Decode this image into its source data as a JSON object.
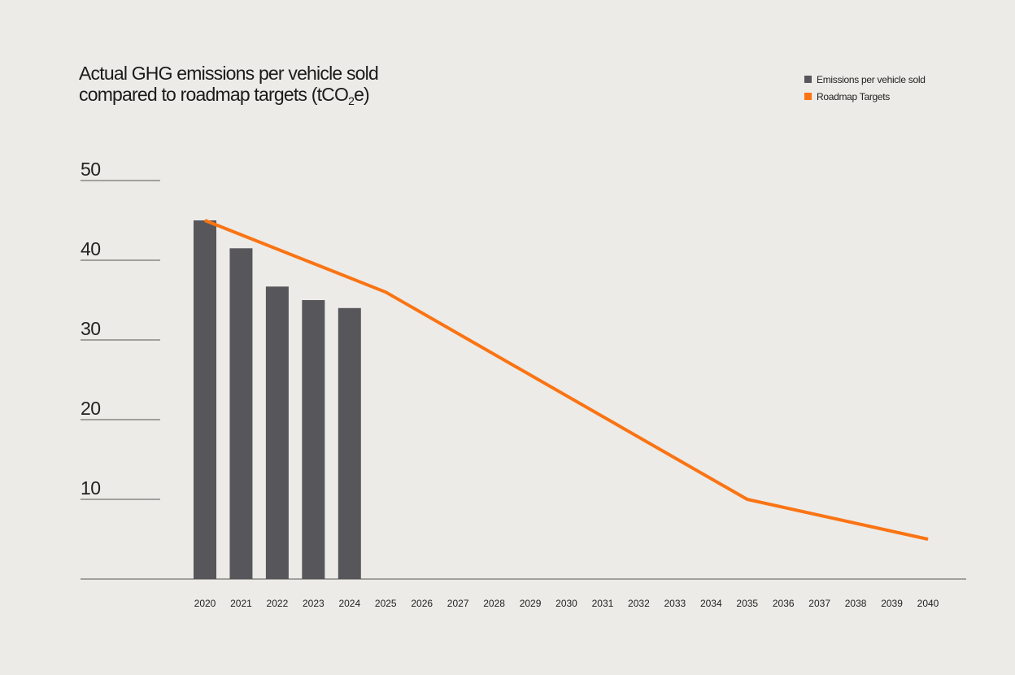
{
  "chart_data": {
    "type": "bar+line",
    "title": {
      "line1": "Actual GHG emissions per vehicle sold",
      "line2_main": "compared to roadmap targets (tCO",
      "line2_sub": "2",
      "line2_end": "e)"
    },
    "xlabel": "",
    "ylabel": "",
    "ylim": [
      0,
      50
    ],
    "yticks": [
      "10",
      "20",
      "30",
      "40",
      "50"
    ],
    "categories": [
      "2020",
      "2021",
      "2022",
      "2023",
      "2024",
      "2025",
      "2026",
      "2027",
      "2028",
      "2029",
      "2030",
      "2031",
      "2032",
      "2033",
      "2034",
      "2035",
      "2036",
      "2037",
      "2038",
      "2039",
      "2040"
    ],
    "series": [
      {
        "name": "Emissions per vehicle sold",
        "type": "bar",
        "color": "#57565b",
        "x": [
          "2020",
          "2021",
          "2022",
          "2023",
          "2024"
        ],
        "values": [
          45.0,
          41.5,
          36.7,
          35.0,
          34.0
        ]
      },
      {
        "name": "Roadmap Targets",
        "type": "line",
        "color": "#fa7414",
        "x": [
          "2020",
          "2025",
          "2035",
          "2040"
        ],
        "values": [
          45,
          36,
          10,
          5
        ]
      }
    ],
    "legend_position": "top-right",
    "grid": "short left gridlines"
  }
}
